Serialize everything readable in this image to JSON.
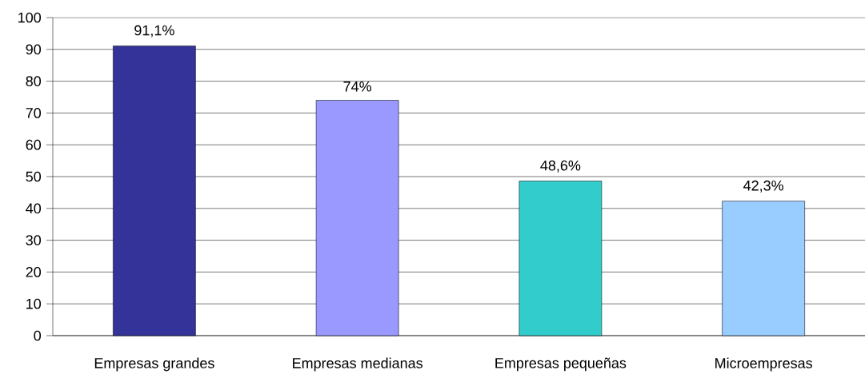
{
  "chart_data": {
    "type": "bar",
    "categories": [
      "Empresas grandes",
      "Empresas medianas",
      "Empresas pequeñas",
      "Microempresas"
    ],
    "values": [
      91.1,
      74,
      48.6,
      42.3
    ],
    "colors": [
      "#333399",
      "#9999ff",
      "#33cccc",
      "#99ccff"
    ],
    "value_labels": [
      "91,1%",
      "74%",
      "48,6%",
      "42,3%"
    ],
    "ylim": [
      0,
      100
    ],
    "yticks": [
      0,
      10,
      20,
      30,
      40,
      50,
      60,
      70,
      80,
      90,
      100
    ],
    "grid": "y"
  }
}
